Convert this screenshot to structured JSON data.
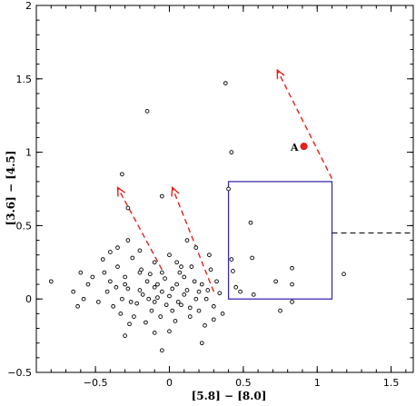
{
  "chart_data": {
    "type": "scatter",
    "xlabel": "[5.8] − [8.0]",
    "ylabel": "[3.6] − [4.5]",
    "xlim": [
      -0.9,
      1.65
    ],
    "ylim": [
      -0.5,
      2.0
    ],
    "xticks": [
      -0.5,
      0,
      0.5,
      1.0,
      1.5
    ],
    "xtick_labels": [
      "−0.5",
      "0",
      "0.5",
      "1",
      "1.5"
    ],
    "yticks": [
      -0.5,
      0,
      0.5,
      1.0,
      1.5,
      2.0
    ],
    "ytick_labels": [
      "−0.5",
      "0",
      "0.5",
      "1",
      "1.5",
      "2"
    ],
    "grid": false,
    "points": [
      [
        -0.28,
        0.62
      ],
      [
        -0.15,
        1.28
      ],
      [
        -0.32,
        0.85
      ],
      [
        -0.05,
        0.7
      ],
      [
        0.38,
        1.47
      ],
      [
        0.42,
        1.0
      ],
      [
        0.4,
        0.75
      ],
      [
        0.42,
        0.27
      ],
      [
        0.43,
        0.19
      ],
      [
        0.45,
        0.08
      ],
      [
        0.48,
        0.05
      ],
      [
        0.55,
        0.52
      ],
      [
        0.56,
        0.28
      ],
      [
        0.57,
        0.03
      ],
      [
        0.72,
        0.12
      ],
      [
        0.75,
        -0.08
      ],
      [
        0.83,
        0.21
      ],
      [
        0.83,
        0.1
      ],
      [
        0.83,
        -0.02
      ],
      [
        1.18,
        0.17
      ],
      [
        -0.8,
        0.12
      ],
      [
        -0.3,
        -0.25
      ],
      [
        -0.1,
        -0.23
      ],
      [
        0.0,
        -0.22
      ],
      [
        0.22,
        -0.3
      ],
      [
        -0.05,
        -0.35
      ],
      [
        -0.65,
        0.05
      ],
      [
        -0.6,
        0.18
      ],
      [
        -0.55,
        0.1
      ],
      [
        -0.45,
        0.27
      ],
      [
        -0.4,
        0.32
      ],
      [
        -0.35,
        0.22
      ],
      [
        -0.3,
        0.15
      ],
      [
        -0.25,
        0.28
      ],
      [
        -0.2,
        0.18
      ],
      [
        -0.15,
        0.12
      ],
      [
        -0.1,
        0.08
      ],
      [
        -0.05,
        0.05
      ],
      [
        0.0,
        0.02
      ],
      [
        0.05,
        0.1
      ],
      [
        0.1,
        0.15
      ],
      [
        0.15,
        0.22
      ],
      [
        0.2,
        0.05
      ],
      [
        0.25,
        0.0
      ],
      [
        0.3,
        -0.05
      ],
      [
        -0.42,
        0.05
      ],
      [
        -0.38,
        -0.05
      ],
      [
        -0.32,
        0.0
      ],
      [
        -0.28,
        0.07
      ],
      [
        -0.22,
        -0.03
      ],
      [
        -0.18,
        0.03
      ],
      [
        -0.12,
        -0.08
      ],
      [
        -0.08,
        0.01
      ],
      [
        -0.02,
        -0.04
      ],
      [
        0.02,
        0.07
      ],
      [
        0.06,
        -0.02
      ],
      [
        0.1,
        0.03
      ],
      [
        0.14,
        -0.06
      ],
      [
        0.18,
        0.0
      ],
      [
        0.22,
        0.1
      ],
      [
        0.26,
        0.06
      ],
      [
        0.32,
        0.12
      ],
      [
        0.36,
        -0.1
      ],
      [
        -0.35,
        0.35
      ],
      [
        -0.28,
        0.4
      ],
      [
        -0.2,
        0.33
      ],
      [
        -0.1,
        0.25
      ],
      [
        0.0,
        0.3
      ],
      [
        0.08,
        0.22
      ],
      [
        0.12,
        0.4
      ],
      [
        0.18,
        0.35
      ],
      [
        0.27,
        0.3
      ],
      [
        -0.48,
        -0.02
      ],
      [
        -0.52,
        0.15
      ],
      [
        -0.58,
        0.0
      ],
      [
        -0.62,
        -0.05
      ],
      [
        -0.44,
        0.18
      ],
      [
        -0.24,
        -0.12
      ],
      [
        -0.16,
        -0.16
      ],
      [
        -0.06,
        -0.12
      ],
      [
        0.04,
        -0.15
      ],
      [
        0.14,
        -0.12
      ],
      [
        0.24,
        -0.18
      ],
      [
        0.3,
        -0.14
      ],
      [
        -0.33,
        -0.1
      ],
      [
        -0.27,
        -0.17
      ],
      [
        -0.19,
        0.2
      ],
      [
        -0.13,
        0.17
      ],
      [
        -0.03,
        0.14
      ],
      [
        0.07,
        0.18
      ],
      [
        0.17,
        0.12
      ],
      [
        0.28,
        0.2
      ],
      [
        0.34,
        0.04
      ],
      [
        -0.4,
        0.12
      ],
      [
        -0.36,
        0.08
      ],
      [
        -0.3,
        0.1
      ],
      [
        -0.26,
        -0.02
      ],
      [
        -0.2,
        0.06
      ],
      [
        -0.14,
        0.0
      ],
      [
        -0.08,
        0.1
      ],
      [
        0.02,
        -0.08
      ],
      [
        0.08,
        -0.04
      ],
      [
        0.12,
        0.06
      ],
      [
        0.2,
        -0.08
      ],
      [
        -0.1,
        -0.02
      ],
      [
        -0.05,
        0.18
      ],
      [
        0.05,
        0.25
      ]
    ],
    "marked_point": {
      "x": 0.91,
      "y": 1.04,
      "label": "A",
      "color": "#e8201a"
    },
    "box": {
      "x0": 0.4,
      "x1": 1.1,
      "y0": 0.0,
      "y1": 0.8,
      "color": "#3b2db5"
    },
    "dashed_line": {
      "x0": 1.1,
      "x1": 1.65,
      "y": 0.45
    },
    "arrows": [
      {
        "from": [
          -0.05,
          0.2
        ],
        "to": [
          -0.35,
          0.76
        ]
      },
      {
        "from": [
          0.3,
          0.05
        ],
        "to": [
          0.02,
          0.76
        ]
      },
      {
        "from": [
          1.1,
          0.82
        ],
        "to": [
          0.73,
          1.56
        ]
      }
    ],
    "arrow_color": "#e8201a"
  }
}
